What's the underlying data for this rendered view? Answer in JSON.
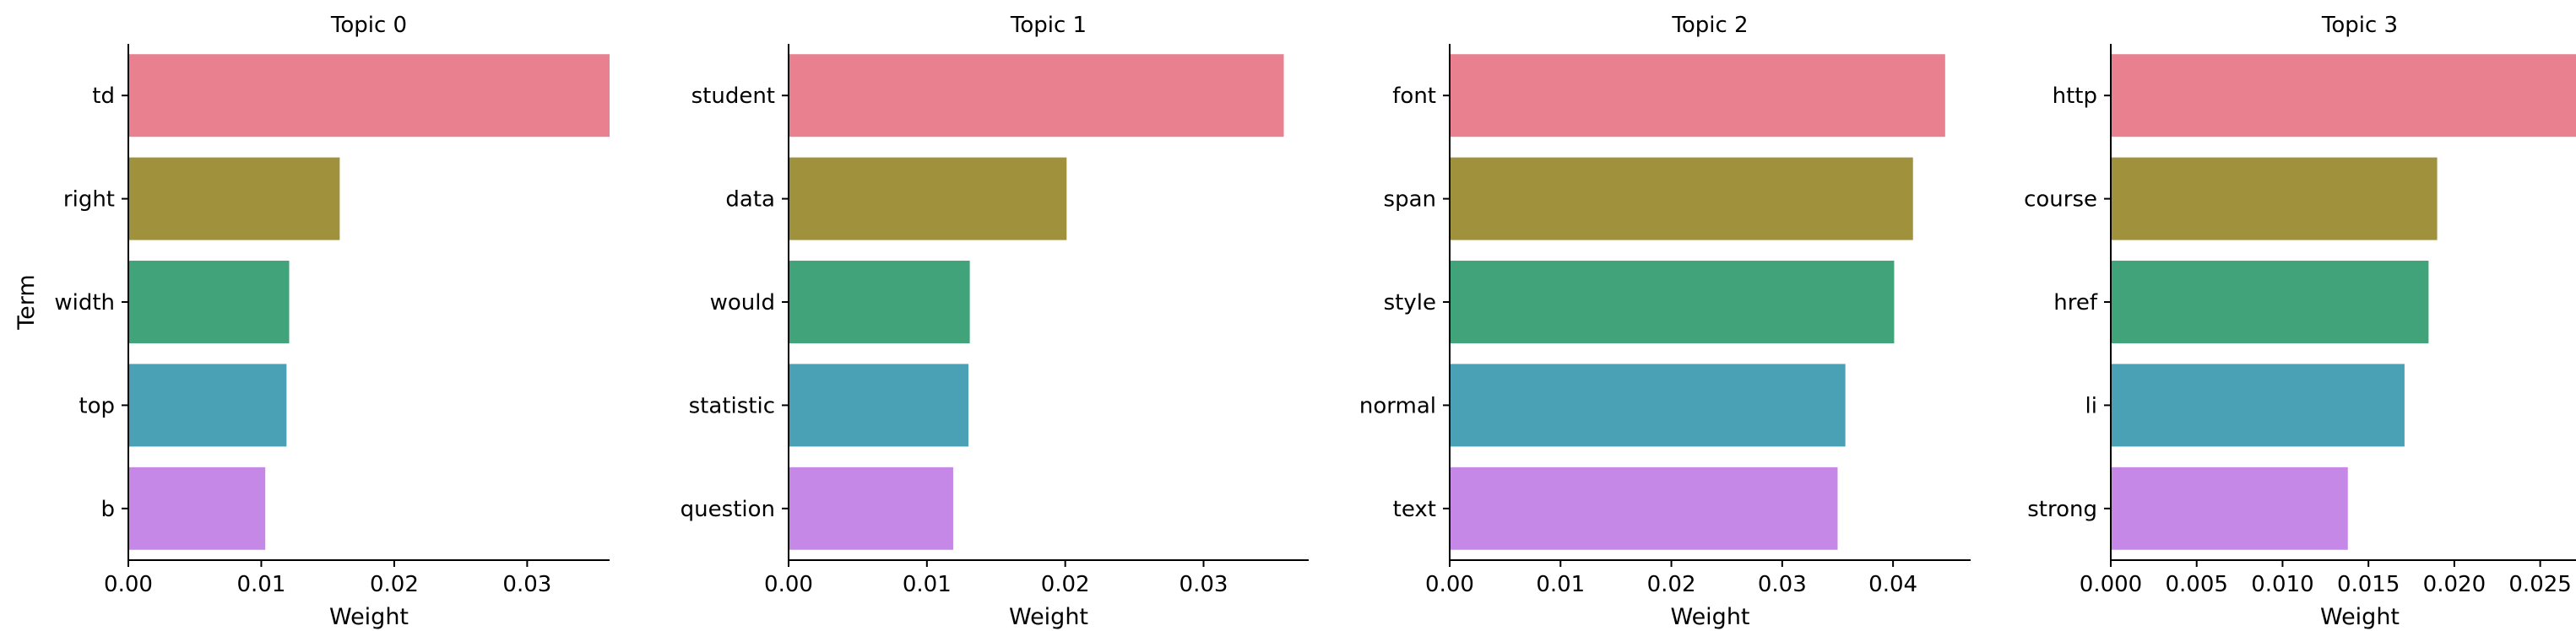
{
  "chart_data": [
    {
      "type": "bar",
      "orientation": "horizontal",
      "title": "Topic 0",
      "xlabel": "Weight",
      "ylabel": "Term",
      "categories": [
        "td",
        "right",
        "width",
        "top",
        "b"
      ],
      "values": [
        0.0362,
        0.0159,
        0.0121,
        0.0119,
        0.0103
      ],
      "xlim": [
        0,
        0.0362
      ],
      "xticks": [
        0.0,
        0.01,
        0.02,
        0.03
      ],
      "xtick_labels": [
        "0.00",
        "0.01",
        "0.02",
        "0.03"
      ],
      "grid": false
    },
    {
      "type": "bar",
      "orientation": "horizontal",
      "title": "Topic 1",
      "xlabel": "Weight",
      "ylabel": "",
      "categories": [
        "student",
        "data",
        "would",
        "statistic",
        "question"
      ],
      "values": [
        0.0358,
        0.0201,
        0.0131,
        0.013,
        0.0119
      ],
      "xlim": [
        0,
        0.0376
      ],
      "xticks": [
        0.0,
        0.01,
        0.02,
        0.03
      ],
      "xtick_labels": [
        "0.00",
        "0.01",
        "0.02",
        "0.03"
      ],
      "grid": false
    },
    {
      "type": "bar",
      "orientation": "horizontal",
      "title": "Topic 2",
      "xlabel": "Weight",
      "ylabel": "",
      "categories": [
        "font",
        "span",
        "style",
        "normal",
        "text"
      ],
      "values": [
        0.0447,
        0.0418,
        0.0401,
        0.0357,
        0.035
      ],
      "xlim": [
        0,
        0.047
      ],
      "xticks": [
        0.0,
        0.01,
        0.02,
        0.03,
        0.04
      ],
      "xtick_labels": [
        "0.00",
        "0.01",
        "0.02",
        "0.03",
        "0.04"
      ],
      "grid": false
    },
    {
      "type": "bar",
      "orientation": "horizontal",
      "title": "Topic 3",
      "xlabel": "Weight",
      "ylabel": "",
      "categories": [
        "http",
        "course",
        "href",
        "li",
        "strong"
      ],
      "values": [
        0.0276,
        0.019,
        0.0185,
        0.0171,
        0.0138
      ],
      "xlim": [
        0,
        0.029
      ],
      "xticks": [
        0.0,
        0.005,
        0.01,
        0.015,
        0.02,
        0.025
      ],
      "xtick_labels": [
        "0.000",
        "0.005",
        "0.010",
        "0.015",
        "0.020",
        "0.025"
      ],
      "grid": false
    }
  ],
  "colors": [
    "#e8808f",
    "#a0913c",
    "#41a37a",
    "#4aa1b6",
    "#c688e6"
  ]
}
